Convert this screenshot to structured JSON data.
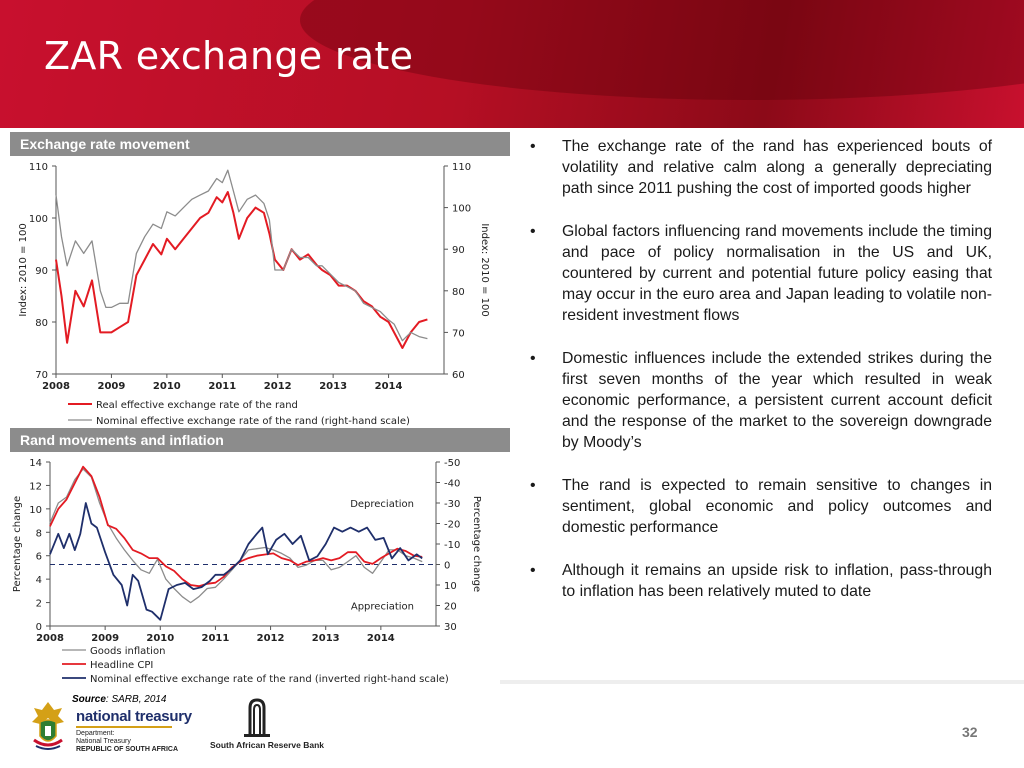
{
  "slide": {
    "title": "ZAR exchange rate",
    "page_number": "32",
    "source_label": "Source",
    "source_text": ": SARB,  2014",
    "colors": {
      "header": "#c8102e",
      "panel_header": "#8c8c8c",
      "real": "#e31b23",
      "nominal": "#8c8c8c",
      "goods": "#8c8c8c",
      "headline": "#e31b23",
      "inverted": "#1f2f6b"
    }
  },
  "panels": {
    "top_header": "Exchange rate movement",
    "bottom_header": "Rand movements and inflation"
  },
  "bullets": [
    "The exchange rate of the rand has experienced bouts of volatility and relative calm along a generally depreciating path since 2011 pushing the cost of imported goods higher",
    "Global factors influencing rand movements include the timing and pace of policy normalisation in the US and UK, countered by current and potential future policy easing that may occur in the euro area and Japan leading to volatile non-resident investment flows",
    "Domestic influences include the extended strikes during the first seven months of the year which resulted in weak economic performance, a persistent current account deficit and the response of the market to the sovereign downgrade by Moody’s",
    "The rand is expected to remain sensitive to changes in sentiment, global economic and policy outcomes and domestic performance",
    "Although it remains an upside risk to inflation, pass-through to inflation has been relatively muted to date"
  ],
  "logos": {
    "treasury_name": "national treasury",
    "treasury_dept": "Department:",
    "treasury_sub": "National Treasury",
    "treasury_country": "REPUBLIC OF SOUTH AFRICA",
    "sarb_name": "South African Reserve Bank"
  },
  "chart_data": [
    {
      "type": "line",
      "title": "Exchange rate movement",
      "ylabel": "Index: 2010 = 100",
      "ylabel_right": "Index: 2010 = 100",
      "ylim": [
        70,
        110
      ],
      "ylim_right": [
        60,
        110
      ],
      "yticks": [
        70,
        80,
        90,
        100,
        110
      ],
      "yticks_right": [
        60,
        70,
        80,
        90,
        100,
        110
      ],
      "xlim": [
        2008,
        2015
      ],
      "xticks": [
        "2008",
        "2009",
        "2010",
        "2011",
        "2012",
        "2013",
        "2014"
      ],
      "legend_position": "bottom",
      "series": [
        {
          "name": "Real effective exchange rate of the rand",
          "axis": "left",
          "x": [
            2008.0,
            2008.1,
            2008.2,
            2008.35,
            2008.5,
            2008.65,
            2008.8,
            2008.9,
            2009.0,
            2009.15,
            2009.3,
            2009.45,
            2009.6,
            2009.75,
            2009.9,
            2010.0,
            2010.15,
            2010.3,
            2010.45,
            2010.6,
            2010.75,
            2010.9,
            2011.0,
            2011.1,
            2011.2,
            2011.3,
            2011.45,
            2011.6,
            2011.75,
            2011.85,
            2011.95,
            2012.1,
            2012.25,
            2012.4,
            2012.55,
            2012.7,
            2012.8,
            2012.95,
            2013.1,
            2013.25,
            2013.4,
            2013.55,
            2013.7,
            2013.85,
            2014.0,
            2014.1,
            2014.25,
            2014.4,
            2014.55,
            2014.7
          ],
          "values": [
            92,
            85,
            76,
            86,
            83,
            88,
            78,
            78,
            78,
            79,
            80,
            89,
            92,
            95,
            93,
            96,
            94,
            96,
            98,
            100,
            101,
            104,
            103,
            105,
            101,
            96,
            100,
            102,
            101,
            97,
            92,
            90,
            94,
            92,
            93,
            91,
            90,
            89,
            87,
            87,
            86,
            84,
            83,
            81,
            80,
            78,
            75,
            78,
            80,
            80.5
          ]
        },
        {
          "name": "Nominal effective exchange rate of the rand (right-hand scale)",
          "axis": "right",
          "x": [
            2008.0,
            2008.1,
            2008.2,
            2008.35,
            2008.5,
            2008.65,
            2008.8,
            2008.9,
            2009.0,
            2009.15,
            2009.3,
            2009.45,
            2009.6,
            2009.75,
            2009.9,
            2010.0,
            2010.15,
            2010.3,
            2010.45,
            2010.6,
            2010.75,
            2010.9,
            2011.0,
            2011.1,
            2011.2,
            2011.3,
            2011.45,
            2011.6,
            2011.75,
            2011.85,
            2011.95,
            2012.1,
            2012.25,
            2012.4,
            2012.55,
            2012.7,
            2012.8,
            2012.95,
            2013.1,
            2013.25,
            2013.4,
            2013.55,
            2013.7,
            2013.85,
            2014.0,
            2014.1,
            2014.25,
            2014.4,
            2014.55,
            2014.7
          ],
          "values": [
            103,
            93,
            86,
            92,
            89,
            92,
            80,
            76,
            76,
            77,
            77,
            89,
            93,
            96,
            95,
            99,
            98,
            100,
            102,
            103,
            104,
            107,
            106,
            109,
            104,
            99,
            102,
            103,
            101,
            97,
            85,
            85,
            90,
            88,
            88,
            86,
            86,
            84,
            82,
            81,
            80,
            77,
            76,
            75,
            73,
            72,
            68,
            70,
            69,
            68.5
          ]
        }
      ]
    },
    {
      "type": "line",
      "title": "Rand movements and inflation",
      "ylabel": "Percentage change",
      "ylabel_right": "Percentage change",
      "ylim": [
        0,
        14
      ],
      "ylim_right": [
        30,
        -50
      ],
      "yticks": [
        0,
        2,
        4,
        6,
        8,
        10,
        12,
        14
      ],
      "yticks_right": [
        -50,
        -40,
        -30,
        -20,
        -10,
        0,
        10,
        20,
        30
      ],
      "xlim": [
        2008,
        2015
      ],
      "xticks": [
        "2008",
        "2009",
        "2010",
        "2011",
        "2012",
        "2013",
        "2014"
      ],
      "legend_position": "bottom",
      "annotations": [
        "Depreciation",
        "Appreciation"
      ],
      "reference_line": 0,
      "series": [
        {
          "name": "Goods inflation",
          "axis": "left",
          "x": [
            2008.0,
            2008.15,
            2008.3,
            2008.45,
            2008.6,
            2008.75,
            2008.9,
            2009.05,
            2009.2,
            2009.35,
            2009.5,
            2009.65,
            2009.8,
            2009.95,
            2010.1,
            2010.25,
            2010.4,
            2010.55,
            2010.7,
            2010.85,
            2011.0,
            2011.15,
            2011.3,
            2011.45,
            2011.6,
            2011.75,
            2011.9,
            2012.05,
            2012.2,
            2012.35,
            2012.5,
            2012.65,
            2012.8,
            2012.95,
            2013.1,
            2013.25,
            2013.4,
            2013.55,
            2013.7,
            2013.85,
            2014.0,
            2014.15,
            2014.3,
            2014.45,
            2014.6,
            2014.75
          ],
          "values": [
            8.8,
            10.5,
            11,
            12.5,
            13.4,
            12.7,
            10.5,
            8.7,
            7.5,
            6.5,
            5.6,
            4.8,
            4.5,
            5.7,
            4.0,
            3.2,
            2.5,
            2.0,
            2.5,
            3.2,
            3.3,
            4.0,
            4.8,
            5.6,
            6.5,
            6.6,
            6.7,
            6.5,
            6.2,
            5.8,
            5.0,
            5.2,
            5.6,
            5.6,
            4.8,
            5.0,
            5.5,
            6.0,
            5.0,
            4.5,
            5.5,
            6.5,
            6.5,
            6.0,
            5.8,
            5.5
          ]
        },
        {
          "name": "Headline CPI",
          "axis": "left",
          "x": [
            2008.0,
            2008.15,
            2008.3,
            2008.45,
            2008.6,
            2008.75,
            2008.9,
            2009.05,
            2009.2,
            2009.35,
            2009.5,
            2009.65,
            2009.8,
            2009.95,
            2010.1,
            2010.25,
            2010.4,
            2010.55,
            2010.7,
            2010.85,
            2011.0,
            2011.15,
            2011.3,
            2011.45,
            2011.6,
            2011.75,
            2011.9,
            2012.05,
            2012.2,
            2012.35,
            2012.5,
            2012.65,
            2012.8,
            2012.95,
            2013.1,
            2013.25,
            2013.4,
            2013.55,
            2013.7,
            2013.85,
            2014.0,
            2014.15,
            2014.3,
            2014.45,
            2014.6,
            2014.75
          ],
          "values": [
            8.5,
            10,
            10.8,
            12.2,
            13.6,
            12.8,
            11,
            8.6,
            8.3,
            7.5,
            6.5,
            6.2,
            5.8,
            5.8,
            5.1,
            4.7,
            4.0,
            3.5,
            3.4,
            3.6,
            3.7,
            4.2,
            5.0,
            5.5,
            5.8,
            6.0,
            6.1,
            6.2,
            5.8,
            5.6,
            5.2,
            5.5,
            5.6,
            5.8,
            5.6,
            5.8,
            6.3,
            6.3,
            5.5,
            5.3,
            5.8,
            6.2,
            6.6,
            6.4,
            6.0,
            5.9
          ]
        },
        {
          "name": "Nominal effective exchange rate of the rand (inverted right-hand scale)",
          "axis": "right",
          "x": [
            2008.0,
            2008.15,
            2008.25,
            2008.35,
            2008.45,
            2008.55,
            2008.65,
            2008.75,
            2008.85,
            2009.0,
            2009.15,
            2009.3,
            2009.4,
            2009.5,
            2009.6,
            2009.75,
            2009.85,
            2010.0,
            2010.15,
            2010.3,
            2010.45,
            2010.6,
            2010.75,
            2010.9,
            2011.0,
            2011.15,
            2011.3,
            2011.45,
            2011.6,
            2011.75,
            2011.85,
            2011.95,
            2012.1,
            2012.25,
            2012.4,
            2012.55,
            2012.7,
            2012.85,
            2013.0,
            2013.15,
            2013.3,
            2013.45,
            2013.6,
            2013.75,
            2013.9,
            2014.05,
            2014.2,
            2014.35,
            2014.5,
            2014.65,
            2014.75
          ],
          "values": [
            -5,
            -15,
            -8,
            -15,
            -7,
            -15,
            -30,
            -20,
            -18,
            -6,
            5,
            10,
            20,
            5,
            8,
            22,
            23,
            27,
            12,
            10,
            9,
            12,
            11,
            8,
            5,
            5,
            2,
            -2,
            -10,
            -15,
            -18,
            -5,
            -12,
            -15,
            -10,
            -14,
            -2,
            -4,
            -10,
            -18,
            -16,
            -18,
            -16,
            -18,
            -12,
            -13,
            -3,
            -8,
            -2,
            -5,
            -3
          ]
        }
      ]
    }
  ]
}
